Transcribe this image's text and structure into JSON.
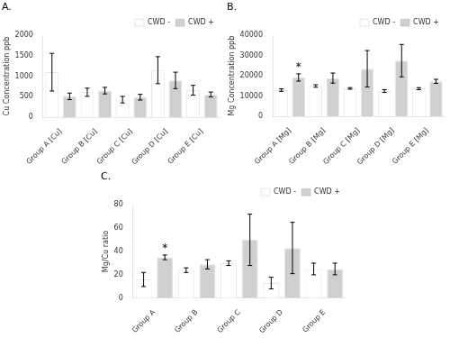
{
  "chart_data": [
    {
      "type": "bar",
      "title": "A.",
      "y_label": "Cu Concentration ppb",
      "categories": [
        "Group A [Cu]",
        "Group B [Cu]",
        "Group C [Cu]",
        "Group D [Cu]",
        "Group E [Cu]"
      ],
      "series": [
        {
          "name": "CWD -",
          "color": "#ffffff",
          "values": [
            1100,
            610,
            430,
            1150,
            660
          ],
          "errors": [
            460,
            100,
            80,
            330,
            120
          ]
        },
        {
          "name": "CWD +",
          "color": "#d0d0d0",
          "values": [
            510,
            650,
            490,
            900,
            555
          ],
          "errors": [
            80,
            80,
            70,
            200,
            60
          ]
        }
      ],
      "ylim": [
        0,
        2000
      ],
      "yticks": [
        0,
        500,
        1000,
        1500,
        2000
      ],
      "grid": false,
      "legend": "upper right"
    },
    {
      "type": "bar",
      "title": "B.",
      "y_label": "Mg Concentration ppb",
      "categories": [
        "Group A [Mg]",
        "Group B [Mg]",
        "Group C [Mg]",
        "Group D [Mg]",
        "Group E [Mg]"
      ],
      "series": [
        {
          "name": "CWD -",
          "color": "#ffffff",
          "values": [
            13000,
            15000,
            13800,
            12500,
            13700
          ],
          "errors": [
            600,
            600,
            400,
            700,
            500
          ]
        },
        {
          "name": "CWD +",
          "color": "#d0d0d0",
          "values": [
            19200,
            18900,
            23500,
            27500,
            17300
          ],
          "errors": [
            1800,
            2500,
            9000,
            8000,
            1000
          ]
        }
      ],
      "ylim": [
        0,
        40000
      ],
      "yticks": [
        0,
        10000,
        20000,
        30000,
        40000
      ],
      "annotations": [
        {
          "text": "*",
          "category": "Group A [Mg]",
          "series": "CWD +"
        }
      ],
      "grid": false,
      "legend": "upper right"
    },
    {
      "type": "bar",
      "title": "C.",
      "y_label": "Mg/Cu ratio",
      "categories": [
        "Group A",
        "Group B",
        "Group C",
        "Group D",
        "Group E"
      ],
      "series": [
        {
          "name": "CWD -",
          "color": "#ffffff",
          "values": [
            16,
            24,
            30,
            13,
            25
          ],
          "errors": [
            6,
            2,
            2,
            5,
            5
          ]
        },
        {
          "name": "CWD +",
          "color": "#d0d0d0",
          "values": [
            35,
            29,
            50,
            43,
            25
          ],
          "errors": [
            2,
            4,
            22,
            22,
            5
          ]
        }
      ],
      "ylim": [
        0,
        80
      ],
      "yticks": [
        0,
        20,
        40,
        60,
        80
      ],
      "annotations": [
        {
          "text": "*",
          "category": "Group A",
          "series": "CWD +"
        }
      ],
      "grid": false,
      "legend": "upper right"
    }
  ]
}
